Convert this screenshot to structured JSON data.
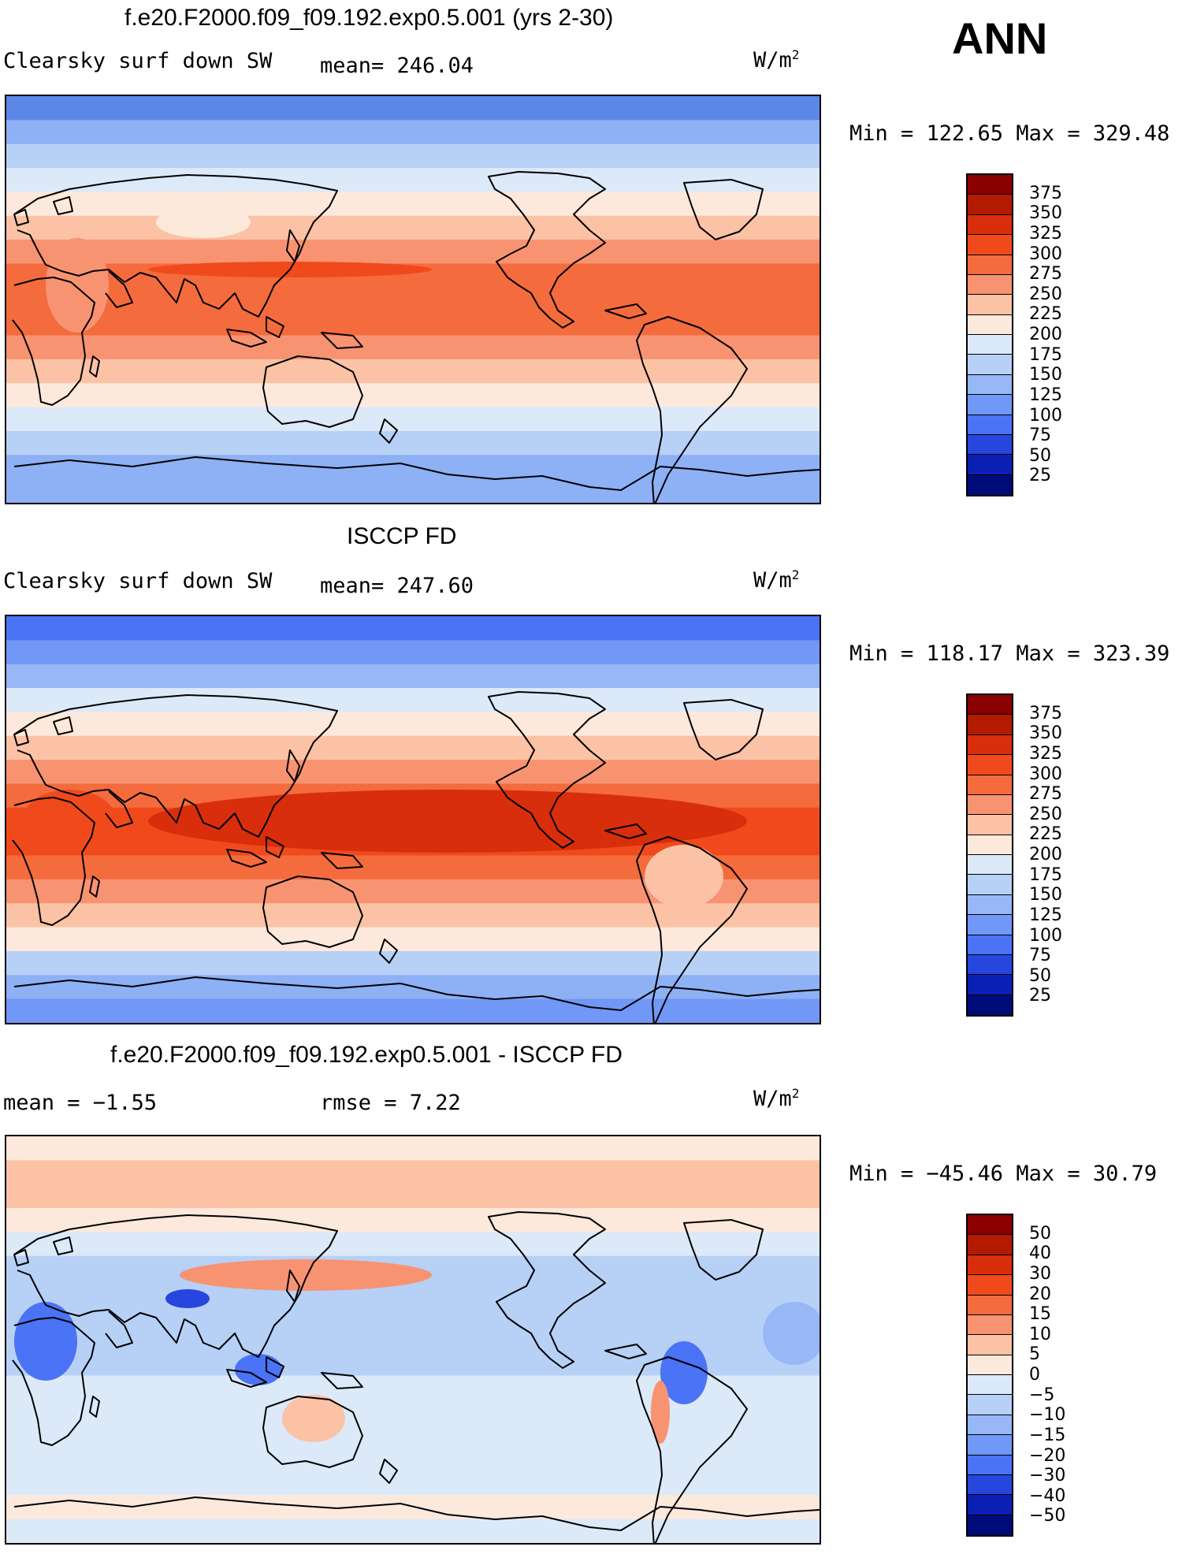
{
  "season": "ANN",
  "panels": [
    {
      "title": "f.e20.F2000.f09_f09.192.exp0.5.001 (yrs 2-30)",
      "left_label": "Clearsky surf down SW",
      "stat1": "mean= 246.04",
      "stat2": "",
      "units": "W/m",
      "units_exp": "2",
      "minmax": "Min = 122.65 Max = 329.48",
      "cbar_labels": [
        "375",
        "350",
        "325",
        "300",
        "275",
        "250",
        "225",
        "200",
        "175",
        "150",
        "125",
        "100",
        "75",
        "50",
        "25"
      ],
      "cbar_colors": [
        "#8b0000",
        "#b21b00",
        "#d82e0c",
        "#f04a1c",
        "#f46b3d",
        "#f89372",
        "#fbc2a5",
        "#fde9dc",
        "#dce9f8",
        "#b7d0f6",
        "#97b7f7",
        "#7197f7",
        "#4a73f5",
        "#2646dd",
        "#0c1fb5",
        "#000b7a"
      ],
      "bands": [
        "#5b87e8",
        "#8eb0f4",
        "#b7d0f6",
        "#dce9f8",
        "#fde9dc",
        "#fbc2a5",
        "#f89372",
        "#f46b3d",
        "#f46b3d",
        "#f46b3d",
        "#f89372",
        "#fbc2a5",
        "#fde9dc",
        "#dce9f8",
        "#b7d0f6",
        "#8eb0f4",
        "#8eb0f4"
      ]
    },
    {
      "title": "ISCCP FD",
      "left_label": "Clearsky surf down SW",
      "stat1": "mean= 247.60",
      "stat2": "",
      "units": "W/m",
      "units_exp": "2",
      "minmax": "Min = 118.17 Max = 323.39",
      "cbar_labels": [
        "375",
        "350",
        "325",
        "300",
        "275",
        "250",
        "225",
        "200",
        "175",
        "150",
        "125",
        "100",
        "75",
        "50",
        "25"
      ],
      "cbar_colors": [
        "#8b0000",
        "#b21b00",
        "#d82e0c",
        "#f04a1c",
        "#f46b3d",
        "#f89372",
        "#fbc2a5",
        "#fde9dc",
        "#dce9f8",
        "#b7d0f6",
        "#97b7f7",
        "#7197f7",
        "#4a73f5",
        "#2646dd",
        "#0c1fb5",
        "#000b7a"
      ],
      "bands": [
        "#4a73f5",
        "#7197f7",
        "#97b7f7",
        "#dce9f8",
        "#fde9dc",
        "#fbc2a5",
        "#f89372",
        "#f46b3d",
        "#f04a1c",
        "#f04a1c",
        "#f46b3d",
        "#f89372",
        "#fbc2a5",
        "#fde9dc",
        "#b7d0f6",
        "#8eb0f4",
        "#7197f7"
      ]
    },
    {
      "title": "f.e20.F2000.f09_f09.192.exp0.5.001 - ISCCP FD",
      "left_label": "mean =   −1.55",
      "stat1": "rmse =    7.22",
      "stat2": "",
      "units": "W/m",
      "units_exp": "2",
      "minmax": "Min = −45.46 Max =  30.79",
      "cbar_labels": [
        "50",
        "40",
        "30",
        "20",
        "15",
        "10",
        "5",
        "0",
        "−5",
        "−10",
        "−15",
        "−20",
        "−30",
        "−40",
        "−50"
      ],
      "cbar_colors": [
        "#8b0000",
        "#b21b00",
        "#d82e0c",
        "#f04a1c",
        "#f46b3d",
        "#f89372",
        "#fbc2a5",
        "#fde9dc",
        "#dce9f8",
        "#b7d0f6",
        "#97b7f7",
        "#7197f7",
        "#4a73f5",
        "#2646dd",
        "#0c1fb5",
        "#000b7a"
      ],
      "bands": [
        "#fde9dc",
        "#fbc2a5",
        "#fbc2a5",
        "#fde9dc",
        "#dce9f8",
        "#b7d0f6",
        "#b7d0f6",
        "#b7d0f6",
        "#b7d0f6",
        "#b7d0f6",
        "#dce9f8",
        "#dce9f8",
        "#dce9f8",
        "#dce9f8",
        "#dce9f8",
        "#fde9dc",
        "#dce9f8"
      ]
    }
  ]
}
